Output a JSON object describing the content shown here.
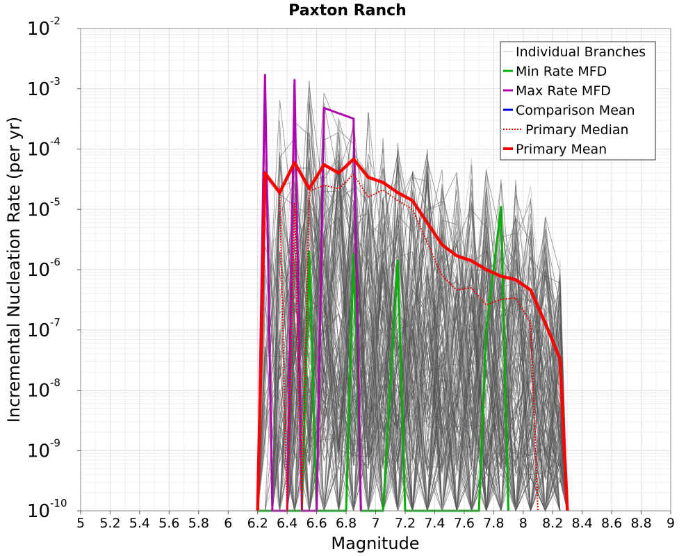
{
  "chart_data": {
    "type": "line",
    "title": "Paxton Ranch",
    "xlabel": "Magnitude",
    "ylabel": "Incremental Nucleation Rate (per yr)",
    "xlim": [
      5,
      9
    ],
    "ylim": [
      1e-10,
      0.01
    ],
    "yscale": "log",
    "grid": true,
    "legend_position": "top-right",
    "x_ticks": [
      "5",
      "5.2",
      "5.4",
      "5.6",
      "5.8",
      "6",
      "6.2",
      "6.4",
      "6.6",
      "6.8",
      "7",
      "7.2",
      "7.4",
      "7.6",
      "7.8",
      "8",
      "8.2",
      "8.4",
      "8.6",
      "8.8",
      "9"
    ],
    "y_ticks": [
      {
        "base": "10",
        "exp": "-10",
        "value": 1e-10
      },
      {
        "base": "10",
        "exp": "-9",
        "value": 1e-09
      },
      {
        "base": "10",
        "exp": "-8",
        "value": 1e-08
      },
      {
        "base": "10",
        "exp": "-7",
        "value": 1e-07
      },
      {
        "base": "10",
        "exp": "-6",
        "value": 1e-06
      },
      {
        "base": "10",
        "exp": "-5",
        "value": 1e-05
      },
      {
        "base": "10",
        "exp": "-4",
        "value": 0.0001
      },
      {
        "base": "10",
        "exp": "-3",
        "value": 0.001
      },
      {
        "base": "10",
        "exp": "-2",
        "value": 0.01
      }
    ],
    "legend": [
      {
        "label": "Individual Branches",
        "color": "#bbbbbb",
        "style": "thin"
      },
      {
        "label": "Min Rate MFD",
        "color": "#00b000",
        "style": "solid"
      },
      {
        "label": "Max Rate MFD",
        "color": "#b000b0",
        "style": "solid"
      },
      {
        "label": "Comparison Mean",
        "color": "#0000dd",
        "style": "solid"
      },
      {
        "label": "Primary Median",
        "color": "#ee0000",
        "style": "dotted"
      },
      {
        "label": "Primary Mean",
        "color": "#ff0000",
        "style": "thick"
      }
    ],
    "branches": {
      "color": "#555555",
      "x": [
        6.25,
        6.35,
        6.45,
        6.55,
        6.65,
        6.75,
        6.85,
        6.95,
        7.05,
        7.15,
        7.25,
        7.35,
        7.45,
        7.55,
        7.65,
        7.75,
        7.85,
        7.95,
        8.05,
        8.15,
        8.25
      ],
      "upper": [
        0.0015,
        0.0015,
        0.0015,
        0.0015,
        0.0012,
        0.0011,
        0.0013,
        0.0007,
        0.0006,
        0.0004,
        0.00025,
        0.00015,
        0.00012,
        0.0001,
        8e-05,
        6e-05,
        5e-05,
        4e-05,
        3e-05,
        1.2e-05,
        2e-06
      ],
      "lower": [
        1e-10,
        1e-10,
        1e-10,
        1e-10,
        1e-10,
        1e-10,
        1e-10,
        1e-10,
        1e-10,
        1e-10,
        1e-10,
        1e-10,
        1e-10,
        1e-10,
        1e-10,
        1e-10,
        1e-10,
        1e-10,
        1e-10,
        1e-10,
        1e-10
      ]
    },
    "series": [
      {
        "name": "Min Rate MFD",
        "color": "#00b000",
        "points": [
          [
            6.2,
            1e-10
          ],
          [
            6.25,
            1e-10
          ],
          [
            6.45,
            1e-10
          ],
          [
            6.5,
            1e-10
          ],
          [
            6.55,
            2e-06
          ],
          [
            6.6,
            1e-10
          ],
          [
            6.75,
            1e-10
          ],
          [
            6.8,
            1e-10
          ],
          [
            6.85,
            1.8e-06
          ],
          [
            6.9,
            1e-10
          ],
          [
            7.05,
            1e-10
          ],
          [
            7.15,
            1.4e-06
          ],
          [
            7.2,
            1e-10
          ],
          [
            7.7,
            1e-10
          ],
          [
            7.75,
            1e-07
          ],
          [
            7.85,
            1.1e-05
          ],
          [
            7.9,
            1e-10
          ]
        ]
      },
      {
        "name": "Max Rate MFD",
        "color": "#b000b0",
        "points": [
          [
            6.2,
            1e-10
          ],
          [
            6.25,
            0.0017
          ],
          [
            6.3,
            1e-10
          ],
          [
            6.4,
            1e-10
          ],
          [
            6.45,
            0.0014
          ],
          [
            6.5,
            1e-10
          ],
          [
            6.6,
            1e-10
          ],
          [
            6.65,
            0.00048
          ],
          [
            6.85,
            0.00032
          ],
          [
            6.9,
            1e-10
          ]
        ]
      },
      {
        "name": "Primary Median",
        "color": "#ee0000",
        "dotted": true,
        "points": [
          [
            6.2,
            1e-10
          ],
          [
            6.25,
            3.6e-05
          ],
          [
            6.35,
            1.8e-05
          ],
          [
            6.4,
            1e-10
          ],
          [
            6.45,
            1.3e-05
          ],
          [
            6.5,
            1e-10
          ],
          [
            6.55,
            2e-05
          ],
          [
            6.65,
            2.5e-05
          ],
          [
            6.75,
            2.2e-05
          ],
          [
            6.85,
            3.8e-05
          ],
          [
            6.95,
            1.6e-05
          ],
          [
            7.05,
            2.1e-05
          ],
          [
            7.15,
            1.4e-05
          ],
          [
            7.25,
            1e-05
          ],
          [
            7.35,
            2.8e-06
          ],
          [
            7.45,
            8e-07
          ],
          [
            7.55,
            4.6e-07
          ],
          [
            7.65,
            5e-07
          ],
          [
            7.75,
            2.6e-07
          ],
          [
            7.85,
            3.2e-07
          ],
          [
            7.95,
            3.4e-07
          ],
          [
            8.05,
            1.3e-07
          ],
          [
            8.1,
            1e-10
          ]
        ]
      },
      {
        "name": "Primary Mean",
        "color": "#ff0000",
        "thick": true,
        "points": [
          [
            6.2,
            1e-10
          ],
          [
            6.25,
            4e-05
          ],
          [
            6.35,
            1.9e-05
          ],
          [
            6.45,
            6e-05
          ],
          [
            6.55,
            2.2e-05
          ],
          [
            6.65,
            5.5e-05
          ],
          [
            6.75,
            4e-05
          ],
          [
            6.85,
            6.8e-05
          ],
          [
            6.95,
            3.4e-05
          ],
          [
            7.05,
            2.8e-05
          ],
          [
            7.15,
            1.9e-05
          ],
          [
            7.25,
            1.4e-05
          ],
          [
            7.35,
            6e-06
          ],
          [
            7.45,
            2.6e-06
          ],
          [
            7.55,
            1.7e-06
          ],
          [
            7.65,
            1.4e-06
          ],
          [
            7.75,
            1e-06
          ],
          [
            7.85,
            7.8e-07
          ],
          [
            7.95,
            6.8e-07
          ],
          [
            8.05,
            4.6e-07
          ],
          [
            8.15,
            1.3e-07
          ],
          [
            8.25,
            3.3e-08
          ],
          [
            8.3,
            1e-10
          ]
        ]
      }
    ]
  }
}
